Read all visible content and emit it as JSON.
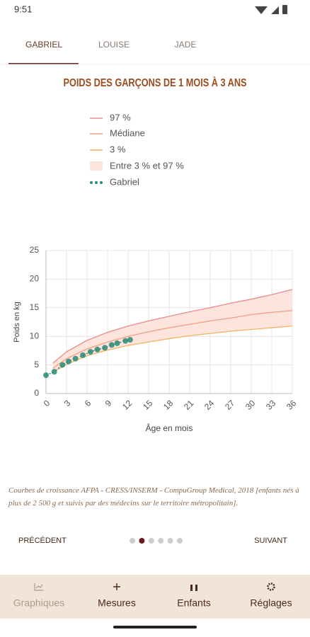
{
  "status_bar": {
    "time": "9:51"
  },
  "tabs": [
    "GABRIEL",
    "LOUISE",
    "JADE"
  ],
  "chart_data": {
    "type": "line",
    "title": "POIDS DES GARÇONS DE 1 MOIS À 3 ANS",
    "x_label": "Âge en mois",
    "y_label": "Poids en kg",
    "xlim": [
      0,
      36
    ],
    "ylim": [
      0,
      25
    ],
    "xticks": [
      0,
      3,
      6,
      9,
      12,
      15,
      18,
      21,
      24,
      27,
      30,
      33,
      36
    ],
    "yticks": [
      0,
      5,
      10,
      15,
      20,
      25
    ],
    "grid": true,
    "series": [
      {
        "name": "97 %",
        "color": "#e88a88",
        "x": [
          1,
          3,
          6,
          9,
          12,
          15,
          18,
          21,
          24,
          27,
          30,
          33,
          36
        ],
        "values": [
          5.3,
          7.3,
          9.3,
          10.7,
          11.8,
          12.7,
          13.5,
          14.3,
          15.0,
          15.8,
          16.5,
          17.3,
          18.2
        ]
      },
      {
        "name": "Médiane",
        "color": "#f0a080",
        "x": [
          1,
          3,
          6,
          9,
          12,
          15,
          18,
          21,
          24,
          27,
          30,
          33,
          36
        ],
        "values": [
          4.4,
          6.1,
          7.8,
          9.0,
          10.0,
          10.8,
          11.5,
          12.1,
          12.7,
          13.2,
          13.8,
          14.2,
          14.5
        ]
      },
      {
        "name": "3 %",
        "color": "#f0b464",
        "x": [
          1,
          3,
          6,
          9,
          12,
          15,
          18,
          21,
          24,
          27,
          30,
          33,
          36
        ],
        "values": [
          3.7,
          5.1,
          6.6,
          7.6,
          8.4,
          9.0,
          9.6,
          10.1,
          10.5,
          10.9,
          11.2,
          11.5,
          11.8
        ]
      },
      {
        "name": "Gabriel",
        "color": "#2a8a76",
        "x": [
          0,
          1.2,
          2.4,
          3.3,
          4.3,
          5.4,
          6.5,
          7.5,
          8.6,
          9.6,
          10.4,
          11.6,
          12.3
        ],
        "values": [
          3.2,
          3.8,
          5.0,
          5.6,
          6.1,
          6.7,
          7.3,
          7.7,
          8.0,
          8.5,
          8.8,
          9.2,
          9.4
        ]
      }
    ],
    "band": {
      "name": "Entre 3 % et 97 %",
      "color": "#fde4dc"
    }
  },
  "footnote": "Courbes de croissance AFPA - CRESS/INSERM - CompuGroup Medical, 2018 [enfants nés à plus de 2 500 g et suivis par des médecins sur le territoire métropolitain].",
  "pager": {
    "previous": "PRÉCÉDENT",
    "next": "SUIVANT",
    "pages": 6,
    "current": 1
  },
  "nav": [
    "Graphiques",
    "Mesures",
    "Enfants",
    "Réglages"
  ]
}
